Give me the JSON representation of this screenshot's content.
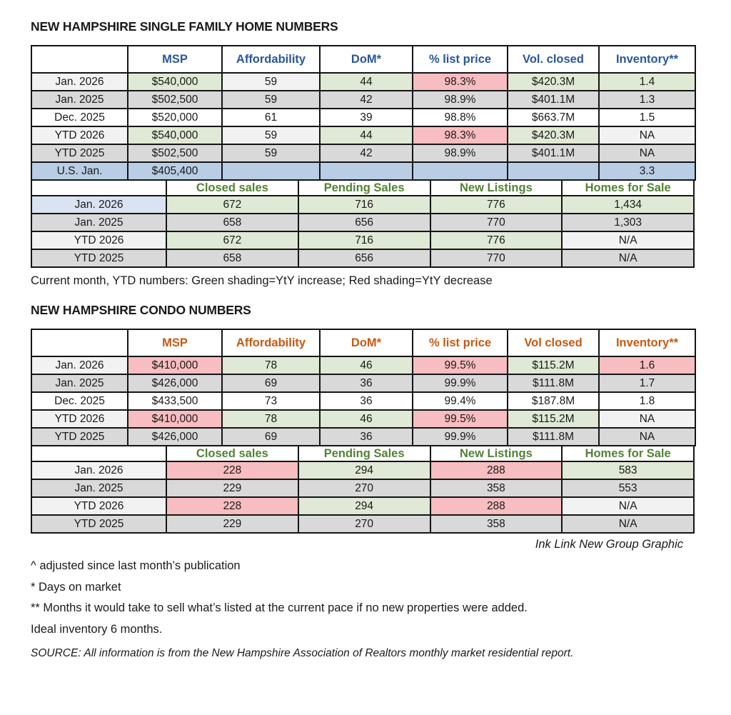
{
  "legend_note": "Current month, YTD numbers: Green shading=YtY increase; Red shading=YtY decrease",
  "credit": "Ink Link New Group Graphic",
  "footnotes": {
    "adjusted": "^ adjusted since last month’s publication",
    "dom": "* Days on market",
    "inventory": "** Months it would take to sell what’s listed at the current pace if no new properties were added.",
    "ideal": "Ideal inventory 6 months.",
    "source": "SOURCE: All information is from the New Hampshire Association of Realtors monthly market residential report."
  },
  "colors": {
    "increase_green": "#dfe9d5",
    "decrease_red": "#f8bdc0",
    "prior_year_gray": "#d9d9d9",
    "neutral_light_gray": "#f2f2f2",
    "us_row_blue": "#b9cde5",
    "current_label_blue": "#dae3f1",
    "header_blue": "#2a5799",
    "header_orange": "#c55a11",
    "header_green": "#538135"
  },
  "sections": [
    {
      "title": "NEW HAMPSHIRE SINGLE FAMILY HOME NUMBERS",
      "stats_table": {
        "columns": [
          "",
          "MSP",
          "Affordability",
          "DoM*",
          "% list price",
          "Vol. closed",
          "Inventory**"
        ],
        "rows": [
          {
            "label": "Jan. 2026",
            "lbg": "l",
            "cells": [
              {
                "v": "$540,000",
                "bg": "g"
              },
              {
                "v": "59",
                "bg": "l"
              },
              {
                "v": "44",
                "bg": "g"
              },
              {
                "v": "98.3%",
                "bg": "r"
              },
              {
                "v": "$420.3M",
                "bg": "g"
              },
              {
                "v": "1.4",
                "bg": "g"
              }
            ]
          },
          {
            "label": "Jan. 2025",
            "lbg": "d",
            "cells": [
              {
                "v": "$502,500",
                "bg": "d"
              },
              {
                "v": "59",
                "bg": "d"
              },
              {
                "v": "42",
                "bg": "d"
              },
              {
                "v": "98.9%",
                "bg": "d"
              },
              {
                "v": "$401.1M",
                "bg": "d"
              },
              {
                "v": "1.3",
                "bg": "d"
              }
            ]
          },
          {
            "label": "Dec. 2025",
            "lbg": "w",
            "cells": [
              {
                "v": "$520,000",
                "bg": "w"
              },
              {
                "v": "61",
                "bg": "w"
              },
              {
                "v": "39",
                "bg": "w"
              },
              {
                "v": "98.8%",
                "bg": "w"
              },
              {
                "v": "$663.7M",
                "bg": "w"
              },
              {
                "v": "1.5",
                "bg": "w"
              }
            ]
          },
          {
            "label": "YTD 2026",
            "lbg": "l",
            "cells": [
              {
                "v": "$540,000",
                "bg": "g"
              },
              {
                "v": "59",
                "bg": "l"
              },
              {
                "v": "44",
                "bg": "g"
              },
              {
                "v": "98.3%",
                "bg": "r"
              },
              {
                "v": "$420.3M",
                "bg": "g"
              },
              {
                "v": "NA",
                "bg": "l"
              }
            ]
          },
          {
            "label": "YTD 2025",
            "lbg": "d",
            "cells": [
              {
                "v": "$502,500",
                "bg": "d"
              },
              {
                "v": "59",
                "bg": "d"
              },
              {
                "v": "42",
                "bg": "d"
              },
              {
                "v": "98.9%",
                "bg": "d"
              },
              {
                "v": "$401.1M",
                "bg": "d"
              },
              {
                "v": "NA",
                "bg": "d"
              }
            ]
          },
          {
            "label": "U.S. Jan.",
            "lbg": "b",
            "cells": [
              {
                "v": "$405,400",
                "bg": "b"
              },
              {
                "v": "",
                "bg": "b"
              },
              {
                "v": "",
                "bg": "b"
              },
              {
                "v": "",
                "bg": "b"
              },
              {
                "v": "",
                "bg": "b"
              },
              {
                "v": "3.3",
                "bg": "b"
              }
            ]
          }
        ]
      },
      "activity_table": {
        "columns": [
          "",
          "Closed sales",
          "Pending Sales",
          "New Listings",
          "Homes for Sale"
        ],
        "rows": [
          {
            "label": "Jan. 2026",
            "lbg": "lb",
            "cells": [
              {
                "v": "672",
                "bg": "g"
              },
              {
                "v": "716",
                "bg": "g"
              },
              {
                "v": "776",
                "bg": "g"
              },
              {
                "v": "1,434",
                "bg": "g"
              }
            ]
          },
          {
            "label": "Jan. 2025",
            "lbg": "d",
            "cells": [
              {
                "v": "658",
                "bg": "d"
              },
              {
                "v": "656",
                "bg": "d"
              },
              {
                "v": "770",
                "bg": "d"
              },
              {
                "v": "1,303",
                "bg": "d"
              }
            ]
          },
          {
            "label": "YTD 2026",
            "lbg": "l",
            "cells": [
              {
                "v": "672",
                "bg": "g"
              },
              {
                "v": "716",
                "bg": "g"
              },
              {
                "v": "776",
                "bg": "g"
              },
              {
                "v": "N/A",
                "bg": "l"
              }
            ]
          },
          {
            "label": "YTD 2025",
            "lbg": "d",
            "cells": [
              {
                "v": "658",
                "bg": "d"
              },
              {
                "v": "656",
                "bg": "d"
              },
              {
                "v": "770",
                "bg": "d"
              },
              {
                "v": "N/A",
                "bg": "d"
              }
            ]
          }
        ]
      }
    },
    {
      "title": "NEW HAMPSHIRE CONDO NUMBERS",
      "stats_table": {
        "columns": [
          "",
          "MSP",
          "Affordability",
          "DoM*",
          "% list price",
          "Vol closed",
          "Inventory**"
        ],
        "rows": [
          {
            "label": "Jan. 2026",
            "lbg": "l",
            "cells": [
              {
                "v": "$410,000",
                "bg": "r"
              },
              {
                "v": "78",
                "bg": "g"
              },
              {
                "v": "46",
                "bg": "g"
              },
              {
                "v": "99.5%",
                "bg": "r"
              },
              {
                "v": "$115.2M",
                "bg": "g"
              },
              {
                "v": "1.6",
                "bg": "r"
              }
            ]
          },
          {
            "label": "Jan. 2025",
            "lbg": "d",
            "cells": [
              {
                "v": "$426,000",
                "bg": "d"
              },
              {
                "v": "69",
                "bg": "d"
              },
              {
                "v": "36",
                "bg": "d"
              },
              {
                "v": "99.9%",
                "bg": "d"
              },
              {
                "v": "$111.8M",
                "bg": "d"
              },
              {
                "v": "1.7",
                "bg": "d"
              }
            ]
          },
          {
            "label": "Dec. 2025",
            "lbg": "w",
            "cells": [
              {
                "v": "$433,500",
                "bg": "w"
              },
              {
                "v": "73",
                "bg": "w"
              },
              {
                "v": "36",
                "bg": "w"
              },
              {
                "v": "99.4%",
                "bg": "w"
              },
              {
                "v": "$187.8M",
                "bg": "w"
              },
              {
                "v": "1.8",
                "bg": "w"
              }
            ]
          },
          {
            "label": "YTD 2026",
            "lbg": "l",
            "cells": [
              {
                "v": "$410,000",
                "bg": "r"
              },
              {
                "v": "78",
                "bg": "g"
              },
              {
                "v": "46",
                "bg": "g"
              },
              {
                "v": "99.5%",
                "bg": "r"
              },
              {
                "v": "$115.2M",
                "bg": "g"
              },
              {
                "v": "NA",
                "bg": "l"
              }
            ]
          },
          {
            "label": "YTD 2025",
            "lbg": "d",
            "cells": [
              {
                "v": "$426,000",
                "bg": "d"
              },
              {
                "v": "69",
                "bg": "d"
              },
              {
                "v": "36",
                "bg": "d"
              },
              {
                "v": "99.9%",
                "bg": "d"
              },
              {
                "v": "$111.8M",
                "bg": "d"
              },
              {
                "v": "NA",
                "bg": "d"
              }
            ]
          }
        ]
      },
      "activity_table": {
        "columns": [
          "",
          "Closed sales",
          "Pending Sales",
          "New Listings",
          "Homes for Sale"
        ],
        "rows": [
          {
            "label": "Jan. 2026",
            "lbg": "l",
            "cells": [
              {
                "v": "228",
                "bg": "r"
              },
              {
                "v": "294",
                "bg": "g"
              },
              {
                "v": "288",
                "bg": "r"
              },
              {
                "v": "583",
                "bg": "g"
              }
            ]
          },
          {
            "label": "Jan. 2025",
            "lbg": "d",
            "cells": [
              {
                "v": "229",
                "bg": "d"
              },
              {
                "v": "270",
                "bg": "d"
              },
              {
                "v": "358",
                "bg": "d"
              },
              {
                "v": "553",
                "bg": "d"
              }
            ]
          },
          {
            "label": "YTD 2026",
            "lbg": "l",
            "cells": [
              {
                "v": "228",
                "bg": "r"
              },
              {
                "v": "294",
                "bg": "g"
              },
              {
                "v": "288",
                "bg": "r"
              },
              {
                "v": "N/A",
                "bg": "l"
              }
            ]
          },
          {
            "label": "YTD 2025",
            "lbg": "d",
            "cells": [
              {
                "v": "229",
                "bg": "d"
              },
              {
                "v": "270",
                "bg": "d"
              },
              {
                "v": "358",
                "bg": "d"
              },
              {
                "v": "N/A",
                "bg": "d"
              }
            ]
          }
        ]
      }
    }
  ]
}
